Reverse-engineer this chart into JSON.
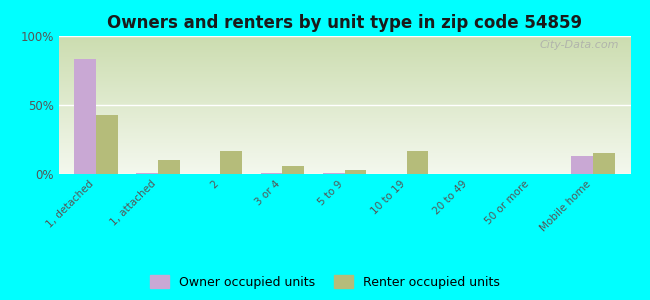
{
  "title": "Owners and renters by unit type in zip code 54859",
  "categories": [
    "1, detached",
    "1, attached",
    "2",
    "3 or 4",
    "5 to 9",
    "10 to 19",
    "20 to 49",
    "50 or more",
    "Mobile home"
  ],
  "owner_values": [
    83,
    1,
    0,
    1,
    1,
    0,
    0,
    0,
    13
  ],
  "renter_values": [
    43,
    10,
    17,
    6,
    3,
    17,
    0,
    0,
    15
  ],
  "owner_color": "#c9a8d4",
  "renter_color": "#b5bc7a",
  "background_color": "#00ffff",
  "plot_bg_top_color": "#ccddb0",
  "plot_bg_bottom_color": "#f4f8ee",
  "ylim": [
    0,
    100
  ],
  "yticks": [
    0,
    50,
    100
  ],
  "ytick_labels": [
    "0%",
    "50%",
    "100%"
  ],
  "legend_owner": "Owner occupied units",
  "legend_renter": "Renter occupied units",
  "watermark": "City-Data.com"
}
